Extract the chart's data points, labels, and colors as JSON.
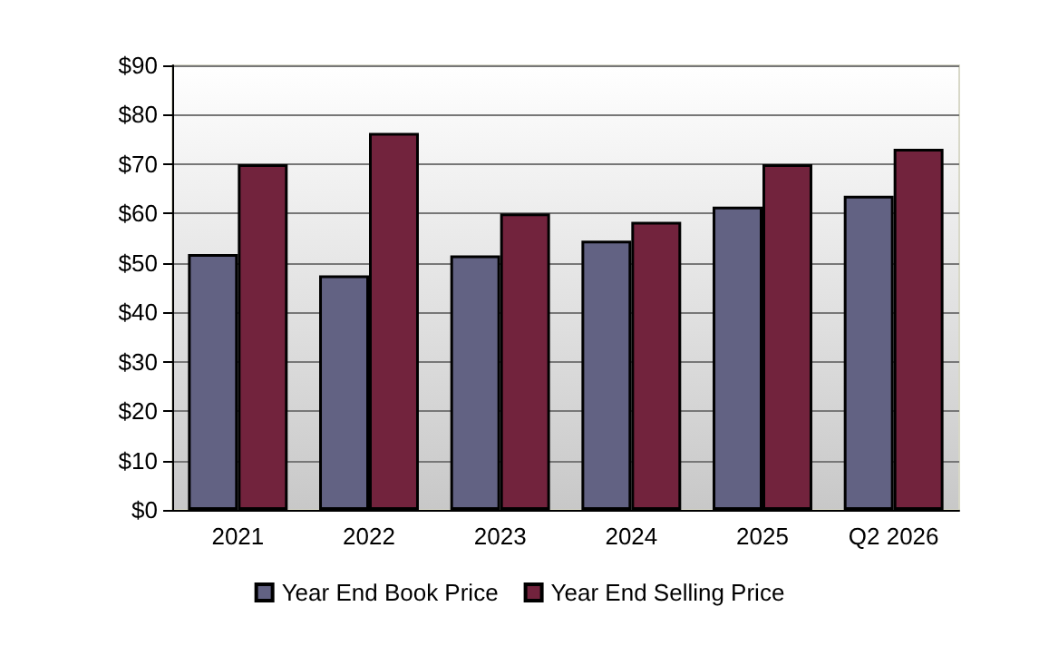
{
  "chart_data": {
    "type": "bar",
    "categories": [
      "2021",
      "2022",
      "2023",
      "2024",
      "2025",
      "Q2 2026"
    ],
    "series": [
      {
        "name": "Year End Book Price",
        "color": "#626283",
        "values": [
          51.8,
          47.5,
          51.5,
          54.5,
          61.4,
          63.6
        ]
      },
      {
        "name": "Year End Selling Price",
        "color": "#72233d",
        "values": [
          70,
          76.3,
          60,
          58.3,
          70,
          73.1
        ]
      }
    ],
    "ylim": [
      0,
      90
    ],
    "yticks": [
      {
        "value": 0,
        "label": "$0"
      },
      {
        "value": 10,
        "label": "$10"
      },
      {
        "value": 20,
        "label": "$20"
      },
      {
        "value": 30,
        "label": "$30"
      },
      {
        "value": 40,
        "label": "$40"
      },
      {
        "value": 50,
        "label": "$50"
      },
      {
        "value": 60,
        "label": "$60"
      },
      {
        "value": 70,
        "label": "$70"
      },
      {
        "value": 80,
        "label": "$80"
      },
      {
        "value": 90,
        "label": "$90"
      }
    ],
    "grid": "y",
    "legend": "bottom"
  }
}
